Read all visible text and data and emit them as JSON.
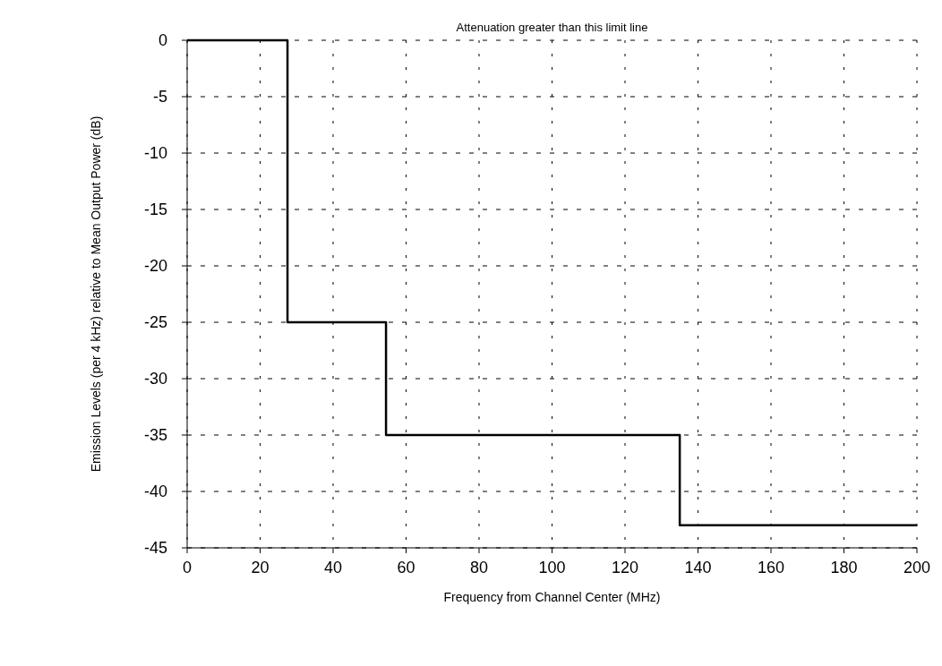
{
  "chart_data": {
    "type": "step",
    "title": "Attenuation greater than this limit line",
    "xlabel": "Frequency from Channel Center (MHz)",
    "ylabel": "Emission Levels (per 4 kHz) relative to Mean Output Power (dB)",
    "x": [
      0,
      27.5,
      54.5,
      135,
      200
    ],
    "series": [
      {
        "color": "#000000",
        "values": [
          0,
          -25,
          -35,
          -43,
          -43
        ]
      }
    ],
    "xlim": [
      0,
      200
    ],
    "xticks": [
      0,
      20,
      40,
      60,
      80,
      100,
      120,
      140,
      160,
      180,
      200
    ],
    "ylim": [
      -45,
      0
    ],
    "yticks": [
      -45,
      -40,
      -35,
      -30,
      -25,
      -20,
      -15,
      -10,
      -5,
      0
    ],
    "grid": true,
    "line_style": "solid"
  }
}
